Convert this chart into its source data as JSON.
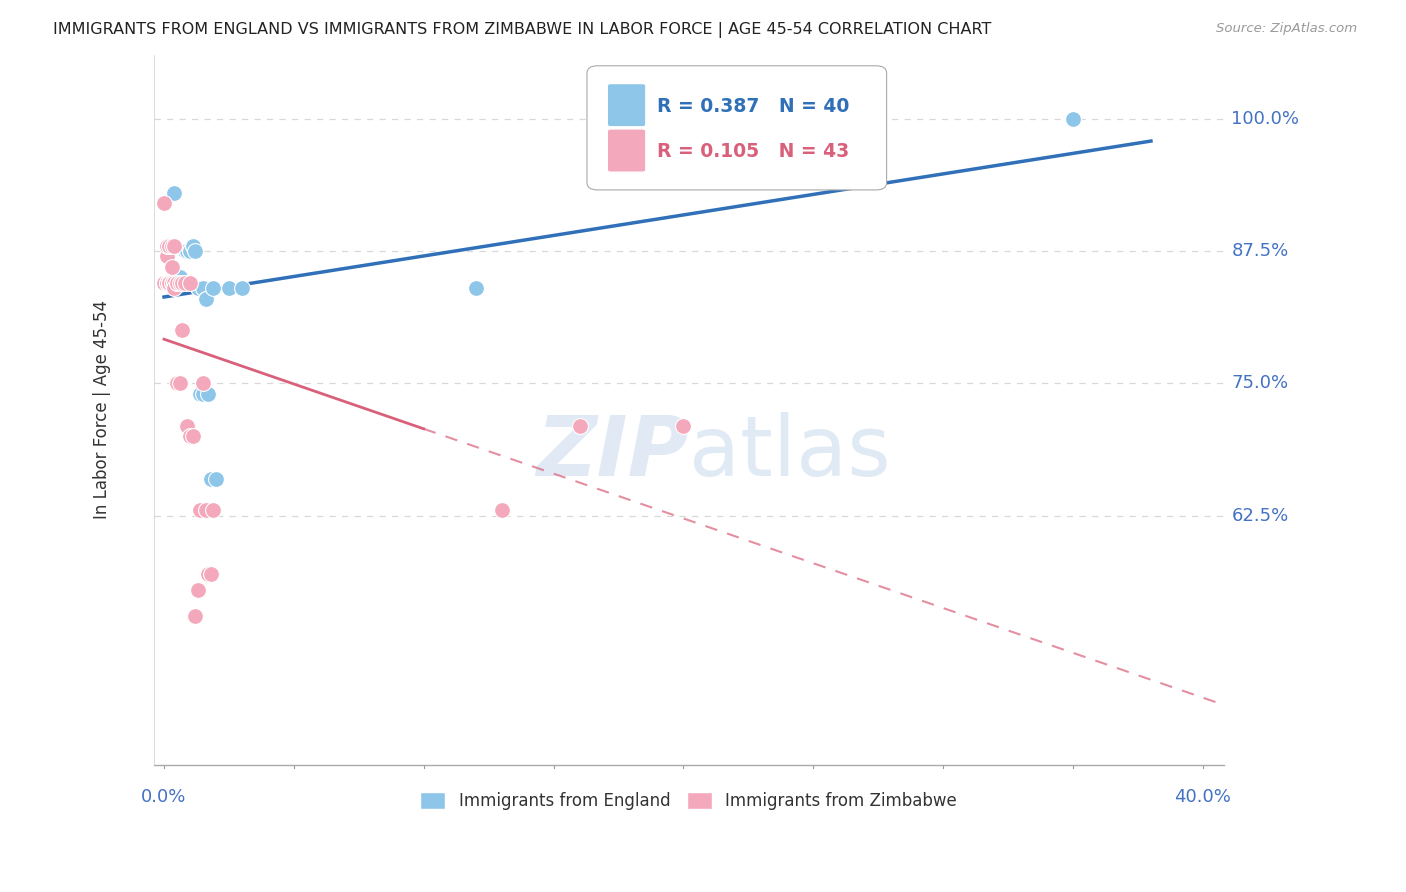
{
  "title": "IMMIGRANTS FROM ENGLAND VS IMMIGRANTS FROM ZIMBABWE IN LABOR FORCE | AGE 45-54 CORRELATION CHART",
  "source": "Source: ZipAtlas.com",
  "ylabel": "In Labor Force | Age 45-54",
  "ymin": 0.39,
  "ymax": 1.06,
  "xmin": -0.004,
  "xmax": 0.408,
  "england_R": 0.387,
  "england_N": 40,
  "zimbabwe_R": 0.105,
  "zimbabwe_N": 43,
  "england_color": "#8dc6e8",
  "zimbabwe_color": "#f4a8bc",
  "england_trend_color": "#3070b8",
  "zimbabwe_trend_color": "#d9607a",
  "england_x": [
    0.0,
    0.0,
    0.001,
    0.001,
    0.001,
    0.002,
    0.002,
    0.003,
    0.003,
    0.004,
    0.004,
    0.005,
    0.005,
    0.006,
    0.006,
    0.007,
    0.007,
    0.008,
    0.008,
    0.009,
    0.009,
    0.01,
    0.01,
    0.011,
    0.011,
    0.012,
    0.013,
    0.014,
    0.015,
    0.015,
    0.016,
    0.016,
    0.017,
    0.018,
    0.019,
    0.02,
    0.025,
    0.03,
    0.12,
    0.35
  ],
  "england_y": [
    0.845,
    0.845,
    0.845,
    0.845,
    0.845,
    0.845,
    0.845,
    0.845,
    0.845,
    0.845,
    0.93,
    0.845,
    0.845,
    0.85,
    0.85,
    0.845,
    0.845,
    0.875,
    0.875,
    0.875,
    0.875,
    0.875,
    0.875,
    0.88,
    0.88,
    0.875,
    0.84,
    0.74,
    0.74,
    0.84,
    0.83,
    0.83,
    0.74,
    0.66,
    0.84,
    0.66,
    0.84,
    0.84,
    0.84,
    1.0
  ],
  "zimbabwe_x": [
    0.0,
    0.0,
    0.0,
    0.0,
    0.001,
    0.001,
    0.001,
    0.001,
    0.002,
    0.002,
    0.002,
    0.002,
    0.003,
    0.003,
    0.003,
    0.003,
    0.004,
    0.004,
    0.004,
    0.005,
    0.005,
    0.005,
    0.006,
    0.006,
    0.007,
    0.007,
    0.008,
    0.009,
    0.009,
    0.01,
    0.01,
    0.011,
    0.012,
    0.013,
    0.014,
    0.015,
    0.016,
    0.017,
    0.018,
    0.019,
    0.13,
    0.16,
    0.2
  ],
  "zimbabwe_y": [
    0.845,
    0.845,
    0.845,
    0.92,
    0.845,
    0.845,
    0.87,
    0.88,
    0.845,
    0.845,
    0.88,
    0.845,
    0.845,
    0.86,
    0.88,
    0.845,
    0.845,
    0.88,
    0.84,
    0.845,
    0.845,
    0.75,
    0.845,
    0.75,
    0.8,
    0.845,
    0.845,
    0.71,
    0.71,
    0.845,
    0.7,
    0.7,
    0.53,
    0.555,
    0.63,
    0.75,
    0.63,
    0.57,
    0.57,
    0.63,
    0.63,
    0.71,
    0.71
  ],
  "watermark_zip": "ZIP",
  "watermark_atlas": "atlas",
  "background_color": "#ffffff",
  "grid_color": "#d8d8d8",
  "axis_label_color": "#4472c4",
  "title_color": "#222222"
}
